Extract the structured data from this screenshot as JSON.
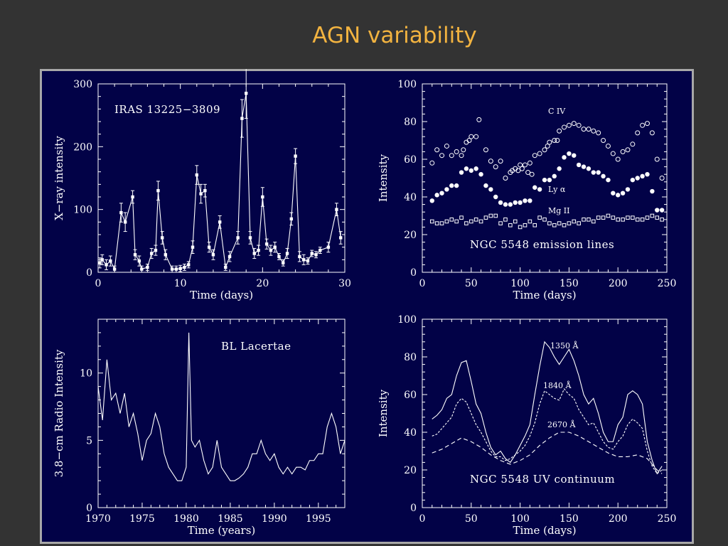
{
  "slide": {
    "title": "AGN variability"
  },
  "colors": {
    "background": "#333333",
    "title": "#f2b340",
    "panel": "#020247",
    "frame": "#a8a8a8",
    "ink": "#ffffff"
  },
  "chart_data": [
    {
      "type": "line",
      "annotation": "IRAS 13225−3809",
      "xlabel": "Time (days)",
      "ylabel": "X−ray intensity",
      "xlim": [
        0,
        30
      ],
      "ylim": [
        0,
        300
      ],
      "xticks": [
        0,
        10,
        20,
        30
      ],
      "yticks": [
        0,
        100,
        200,
        300
      ],
      "grid": false,
      "markers": true,
      "errorbars": true,
      "series": [
        {
          "x": [
            0.2,
            0.5,
            1.0,
            1.5,
            2.0,
            2.8,
            3.3,
            4.2,
            4.5,
            5.0,
            5.3,
            6.0,
            6.5,
            7.0,
            7.3,
            7.8,
            8.2,
            9.0,
            9.5,
            10.0,
            10.5,
            11.0,
            11.5,
            12.0,
            12.5,
            13.0,
            13.5,
            14.0,
            14.8,
            15.5,
            16.0,
            17.0,
            17.5,
            18.0,
            18.5,
            19.0,
            19.5,
            20.0,
            20.5,
            21.0,
            21.5,
            22.0,
            22.5,
            23.0,
            23.5,
            24.0,
            24.5,
            25.0,
            25.5,
            26.0,
            26.5,
            27.0,
            28.0,
            29.0,
            29.5
          ],
          "y": [
            15,
            20,
            12,
            18,
            5,
            95,
            80,
            120,
            28,
            18,
            5,
            8,
            30,
            35,
            130,
            55,
            28,
            5,
            5,
            6,
            8,
            12,
            40,
            155,
            125,
            130,
            40,
            28,
            80,
            8,
            25,
            55,
            245,
            285,
            55,
            30,
            35,
            120,
            45,
            35,
            40,
            25,
            15,
            30,
            85,
            185,
            25,
            20,
            18,
            30,
            28,
            35,
            40,
            100,
            55
          ],
          "yerr": [
            8,
            8,
            8,
            8,
            5,
            15,
            15,
            10,
            8,
            8,
            5,
            5,
            8,
            8,
            15,
            10,
            8,
            5,
            5,
            5,
            5,
            5,
            10,
            15,
            15,
            10,
            8,
            8,
            10,
            5,
            8,
            10,
            30,
            40,
            10,
            8,
            8,
            15,
            8,
            8,
            8,
            5,
            5,
            8,
            10,
            12,
            8,
            8,
            5,
            5,
            5,
            5,
            8,
            10,
            10
          ]
        }
      ]
    },
    {
      "type": "scatter",
      "annotation": "NGC 5548 emission lines",
      "xlabel": "Time (days)",
      "ylabel": "Intensity",
      "xlim": [
        0,
        250
      ],
      "ylim": [
        0,
        100
      ],
      "xticks": [
        0,
        50,
        100,
        150,
        200,
        250
      ],
      "yticks": [
        0,
        20,
        40,
        60,
        80,
        100
      ],
      "grid": false,
      "series": [
        {
          "name": "C IV",
          "marker": "open-circle",
          "x": [
            10,
            15,
            20,
            25,
            30,
            35,
            40,
            42,
            45,
            48,
            50,
            55,
            58,
            65,
            70,
            75,
            80,
            85,
            90,
            92,
            95,
            98,
            100,
            102,
            105,
            108,
            110,
            112,
            115,
            120,
            125,
            128,
            130,
            135,
            138,
            140,
            145,
            150,
            155,
            160,
            165,
            170,
            175,
            180,
            185,
            190,
            195,
            200,
            205,
            210,
            215,
            220,
            225,
            230,
            235,
            240,
            245
          ],
          "y": [
            58,
            65,
            62,
            67,
            62,
            64,
            62,
            65,
            69,
            70,
            72,
            72,
            81,
            65,
            59,
            56,
            59,
            50,
            53,
            54,
            55,
            54,
            57,
            55,
            57,
            53,
            58,
            52,
            62,
            63,
            65,
            67,
            69,
            70,
            70,
            75,
            77,
            78,
            79,
            78,
            76,
            76,
            75,
            74,
            70,
            67,
            63,
            60,
            64,
            65,
            68,
            74,
            78,
            79,
            74,
            60,
            50
          ]
        },
        {
          "name": "Ly α",
          "marker": "filled-circle",
          "x": [
            10,
            15,
            20,
            25,
            30,
            35,
            40,
            45,
            50,
            55,
            60,
            65,
            70,
            75,
            80,
            85,
            90,
            95,
            100,
            105,
            110,
            115,
            120,
            125,
            130,
            135,
            140,
            145,
            150,
            155,
            160,
            165,
            170,
            175,
            180,
            185,
            190,
            195,
            200,
            205,
            210,
            215,
            220,
            225,
            230,
            235,
            240,
            245
          ],
          "y": [
            38,
            41,
            42,
            44,
            46,
            46,
            53,
            55,
            54,
            55,
            52,
            46,
            44,
            40,
            37,
            36,
            36,
            37,
            37,
            38,
            38,
            45,
            44,
            49,
            49,
            51,
            55,
            61,
            63,
            62,
            57,
            56,
            55,
            53,
            53,
            51,
            49,
            42,
            41,
            42,
            44,
            49,
            50,
            51,
            52,
            43,
            33,
            33
          ]
        },
        {
          "name": "Mg II",
          "marker": "open-square",
          "x": [
            10,
            15,
            20,
            25,
            30,
            35,
            40,
            45,
            50,
            55,
            60,
            65,
            70,
            75,
            80,
            85,
            90,
            95,
            100,
            105,
            110,
            115,
            120,
            125,
            130,
            135,
            140,
            145,
            150,
            155,
            160,
            165,
            170,
            175,
            180,
            185,
            190,
            195,
            200,
            205,
            210,
            215,
            220,
            225,
            230,
            235,
            240,
            245
          ],
          "y": [
            27,
            26,
            26,
            27,
            28,
            27,
            29,
            26,
            27,
            28,
            27,
            29,
            30,
            30,
            26,
            28,
            25,
            27,
            24,
            25,
            27,
            25,
            29,
            28,
            26,
            25,
            26,
            25,
            26,
            27,
            26,
            28,
            28,
            27,
            29,
            29,
            30,
            29,
            28,
            28,
            29,
            29,
            28,
            28,
            29,
            30,
            29,
            28
          ]
        }
      ]
    },
    {
      "type": "line",
      "annotation": "BL Lacertae",
      "xlabel": "Time (years)",
      "ylabel": "3.8−cm Radio Intensity",
      "xlim": [
        1970,
        1998
      ],
      "ylim": [
        0,
        14
      ],
      "xticks": [
        1970,
        1975,
        1980,
        1985,
        1990,
        1995
      ],
      "yticks": [
        0,
        5,
        10
      ],
      "grid": false,
      "series": [
        {
          "x": [
            1970,
            1970.5,
            1971,
            1971.5,
            1972,
            1972.5,
            1973,
            1973.5,
            1974,
            1974.5,
            1975,
            1975.5,
            1976,
            1976.5,
            1977,
            1977.5,
            1978,
            1978.5,
            1979,
            1979.5,
            1980,
            1980.3,
            1980.6,
            1981,
            1981.5,
            1982,
            1982.5,
            1983,
            1983.5,
            1984,
            1984.5,
            1985,
            1985.5,
            1986,
            1986.5,
            1987,
            1987.5,
            1988,
            1988.5,
            1989,
            1989.5,
            1990,
            1990.5,
            1991,
            1991.5,
            1992,
            1992.5,
            1993,
            1993.5,
            1994,
            1994.5,
            1995,
            1995.5,
            1996,
            1996.5,
            1997,
            1997.5,
            1998
          ],
          "y": [
            9,
            6.5,
            11,
            8,
            8.5,
            7,
            8.5,
            6,
            7,
            5.5,
            3.5,
            5,
            5.5,
            7,
            6,
            4,
            3,
            2.5,
            2,
            2,
            3,
            13,
            5,
            4.5,
            5,
            3.5,
            2.5,
            3,
            5,
            3,
            2.5,
            2,
            2,
            2.2,
            2.5,
            3,
            4,
            4,
            5,
            4,
            3.5,
            4,
            3,
            2.5,
            3,
            2.5,
            3,
            3,
            2.8,
            3.5,
            3.5,
            4,
            4,
            6,
            7,
            6,
            4,
            5
          ]
        }
      ]
    },
    {
      "type": "line",
      "annotation": "NGC 5548 UV continuum",
      "xlabel": "Time (days)",
      "ylabel": "Intensity",
      "xlim": [
        0,
        250
      ],
      "ylim": [
        0,
        100
      ],
      "xticks": [
        0,
        50,
        100,
        150,
        200,
        250
      ],
      "yticks": [
        0,
        20,
        40,
        60,
        80,
        100
      ],
      "grid": false,
      "series": [
        {
          "name": "1350 Å",
          "line": "solid",
          "x": [
            10,
            15,
            20,
            25,
            30,
            35,
            40,
            45,
            50,
            55,
            60,
            65,
            70,
            75,
            80,
            85,
            90,
            95,
            100,
            105,
            110,
            115,
            120,
            125,
            130,
            135,
            140,
            145,
            150,
            155,
            160,
            165,
            170,
            175,
            180,
            185,
            190,
            195,
            200,
            205,
            210,
            215,
            220,
            225,
            230,
            235,
            240,
            245
          ],
          "y": [
            47,
            49,
            52,
            58,
            60,
            70,
            77,
            78,
            67,
            55,
            50,
            40,
            32,
            28,
            30,
            26,
            24,
            28,
            33,
            38,
            44,
            60,
            75,
            88,
            85,
            80,
            76,
            80,
            84,
            78,
            70,
            60,
            55,
            58,
            50,
            40,
            35,
            35,
            44,
            48,
            60,
            62,
            60,
            55,
            35,
            25,
            18,
            22
          ]
        },
        {
          "name": "1840 Å",
          "line": "dashed",
          "x": [
            10,
            15,
            20,
            25,
            30,
            35,
            40,
            45,
            50,
            55,
            60,
            65,
            70,
            75,
            80,
            85,
            90,
            95,
            100,
            105,
            110,
            115,
            120,
            125,
            130,
            135,
            140,
            145,
            150,
            155,
            160,
            165,
            170,
            175,
            180,
            185,
            190,
            195,
            200,
            205,
            210,
            215,
            220,
            225,
            230,
            235,
            240,
            245
          ],
          "y": [
            38,
            39,
            42,
            45,
            48,
            55,
            58,
            56,
            50,
            44,
            40,
            35,
            30,
            27,
            27,
            25,
            26,
            28,
            30,
            33,
            38,
            45,
            55,
            62,
            60,
            58,
            57,
            63,
            60,
            58,
            52,
            48,
            44,
            45,
            40,
            35,
            32,
            31,
            35,
            38,
            44,
            47,
            45,
            42,
            30,
            22,
            18,
            20
          ]
        },
        {
          "name": "2670 Å",
          "line": "dashed",
          "x": [
            10,
            20,
            30,
            40,
            50,
            60,
            70,
            80,
            90,
            100,
            110,
            120,
            130,
            140,
            150,
            160,
            170,
            180,
            190,
            200,
            210,
            220,
            230,
            240,
            245
          ],
          "y": [
            29,
            31,
            34,
            37,
            35,
            32,
            28,
            25,
            23,
            25,
            28,
            33,
            37,
            40,
            40,
            38,
            35,
            32,
            29,
            27,
            27,
            28,
            26,
            20,
            18
          ]
        }
      ]
    }
  ]
}
